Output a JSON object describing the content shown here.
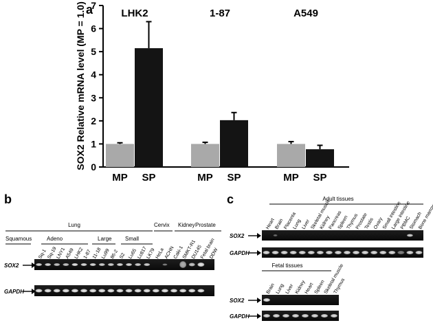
{
  "panel_letters": {
    "a": "a",
    "b": "b",
    "c": "c"
  },
  "chart_data": {
    "type": "bar",
    "title": "",
    "xlabel": "",
    "ylabel": "SOX2 Relative mRNA level (MP = 1.0)",
    "ylim": [
      0,
      7
    ],
    "yticks": [
      "0",
      "1",
      "2",
      "3",
      "4",
      "5",
      "6",
      "7"
    ],
    "grid": false,
    "colors": {
      "MP": "#a9a9a9",
      "SP": "#141414"
    },
    "groups": [
      {
        "name": "LHK2",
        "bars": [
          {
            "label": "MP",
            "value": 1.0,
            "error": 0.05
          },
          {
            "label": "SP",
            "value": 5.15,
            "error": 1.15
          }
        ]
      },
      {
        "name": "1-87",
        "bars": [
          {
            "label": "MP",
            "value": 1.0,
            "error": 0.07
          },
          {
            "label": "SP",
            "value": 2.03,
            "error": 0.33
          }
        ]
      },
      {
        "name": "A549",
        "bars": [
          {
            "label": "MP",
            "value": 1.0,
            "error": 0.1
          },
          {
            "label": "SP",
            "value": 0.77,
            "error": 0.17
          }
        ]
      }
    ]
  },
  "panel_b": {
    "categories": [
      {
        "label": "Lung",
        "subs": [
          "Squamous",
          "Adeno",
          "Large",
          "Small"
        ]
      },
      {
        "label": "Cervix"
      },
      {
        "label": "Kidney"
      },
      {
        "label": "Prostate"
      }
    ],
    "lanes": [
      "Sq-1",
      "Sq-19",
      "LNY1",
      "A549",
      "LHK2",
      "1-87",
      "11-18",
      "Lu99",
      "86-2",
      "S2",
      "Lu65",
      "Lc817",
      "LK79",
      "HeLa",
      "ACHN",
      "Caki-1",
      "SMKT-R1",
      "DU145",
      "Fetal brain",
      "DDW"
    ],
    "row_labels": [
      "SOX2",
      "GAPDH"
    ]
  },
  "panel_c": {
    "adult": {
      "title": "Adult tissues",
      "lanes": [
        "Heart",
        "Brain",
        "Placenta",
        "Lung",
        "Liver",
        "Skeletal muscle",
        "Kidney",
        "Pancreas",
        "Spleen",
        "Thymus",
        "Prostate",
        "Testis",
        "Ovary",
        "Small intestine",
        "Large intestine",
        "PBMC",
        "Stomach",
        "Bone marrow"
      ],
      "row_labels": [
        "SOX2",
        "GAPDH"
      ]
    },
    "fetal": {
      "title": "Fetal tissues",
      "lanes": [
        "Brain",
        "Lung",
        "Liver",
        "Kidney",
        "Heart",
        "Spleen",
        "Skeletal muscle",
        "Thymus"
      ],
      "row_labels": [
        "SOX2",
        "GAPDH"
      ]
    }
  }
}
